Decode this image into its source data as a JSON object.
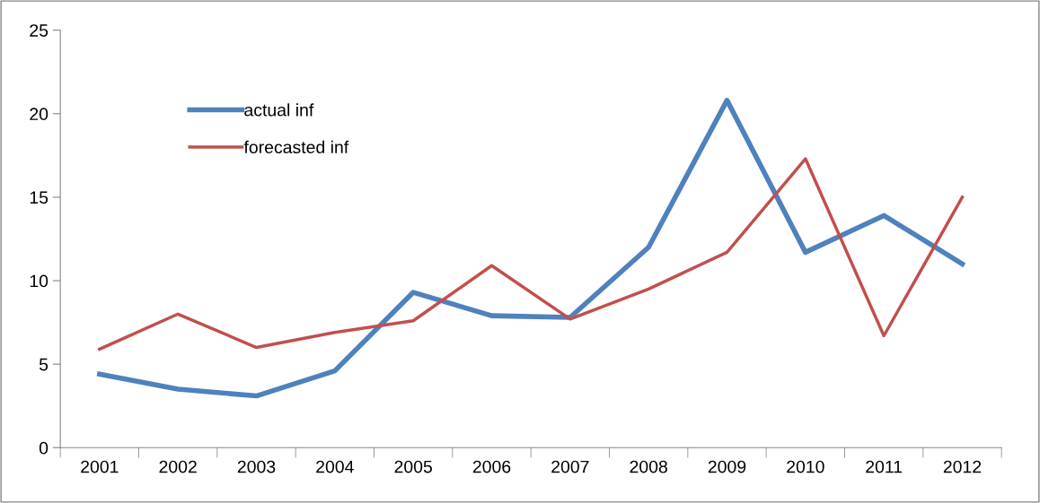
{
  "chart_data": {
    "type": "line",
    "categories": [
      "2001",
      "2002",
      "2003",
      "2004",
      "2005",
      "2006",
      "2007",
      "2008",
      "2009",
      "2010",
      "2011",
      "2012"
    ],
    "series": [
      {
        "name": "actual inf",
        "color": "#4f81bd",
        "values": [
          4.4,
          3.5,
          3.1,
          4.6,
          9.3,
          7.9,
          7.8,
          12.0,
          20.8,
          11.7,
          13.9,
          11.0
        ]
      },
      {
        "name": "forecasted inf",
        "color": "#c0504d",
        "values": [
          5.9,
          8.0,
          6.0,
          6.9,
          7.6,
          10.9,
          7.7,
          9.5,
          11.7,
          17.3,
          6.7,
          15.0
        ]
      }
    ],
    "ylim": [
      0,
      25
    ],
    "yticks": [
      0,
      5,
      10,
      15,
      20,
      25
    ],
    "grid": false,
    "legend": "top left",
    "marker": "none"
  }
}
